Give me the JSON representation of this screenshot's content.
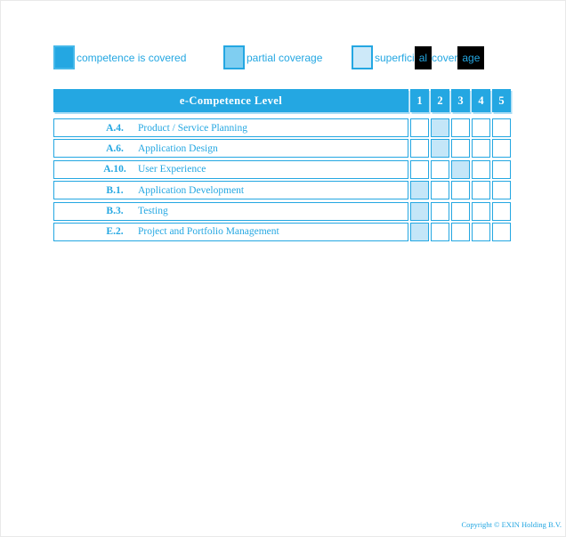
{
  "colors": {
    "primary": "#24A7E2",
    "partial": "#7FCEF1",
    "superficial": "#CDE9F9",
    "highlight": "#C4E6F8",
    "shadow": "#A9DDF5",
    "redaction": "#000000"
  },
  "legend": {
    "items": [
      {
        "type": "covered",
        "label": "competence is covered"
      },
      {
        "type": "partial",
        "label": "partial coverage"
      },
      {
        "type": "superficial",
        "label": "superficial coverage",
        "segments": [
          {
            "text": "superfici",
            "redacted": false
          },
          {
            "text": "al",
            "redacted": true
          },
          {
            "text": "cover",
            "redacted": false
          },
          {
            "text": "age",
            "redacted": true
          }
        ]
      }
    ]
  },
  "table": {
    "header": {
      "title": "e-Competence Level",
      "level_columns": [
        "1",
        "2",
        "3",
        "4",
        "5"
      ]
    },
    "rows": [
      {
        "code": "A.4.",
        "name": "Product / Service Planning",
        "coverage_level": 2
      },
      {
        "code": "A.6.",
        "name": "Application Design",
        "coverage_level": 2
      },
      {
        "code": "A.10.",
        "name": "User Experience",
        "coverage_level": 3
      },
      {
        "code": "B.1.",
        "name": "Application Development",
        "coverage_level": 1
      },
      {
        "code": "B.3.",
        "name": "Testing",
        "coverage_level": 1
      },
      {
        "code": "E.2.",
        "name": "Project and Portfolio Management",
        "coverage_level": 1
      }
    ]
  },
  "footer": {
    "copyright": "Copyright © EXIN Holding B.V."
  }
}
